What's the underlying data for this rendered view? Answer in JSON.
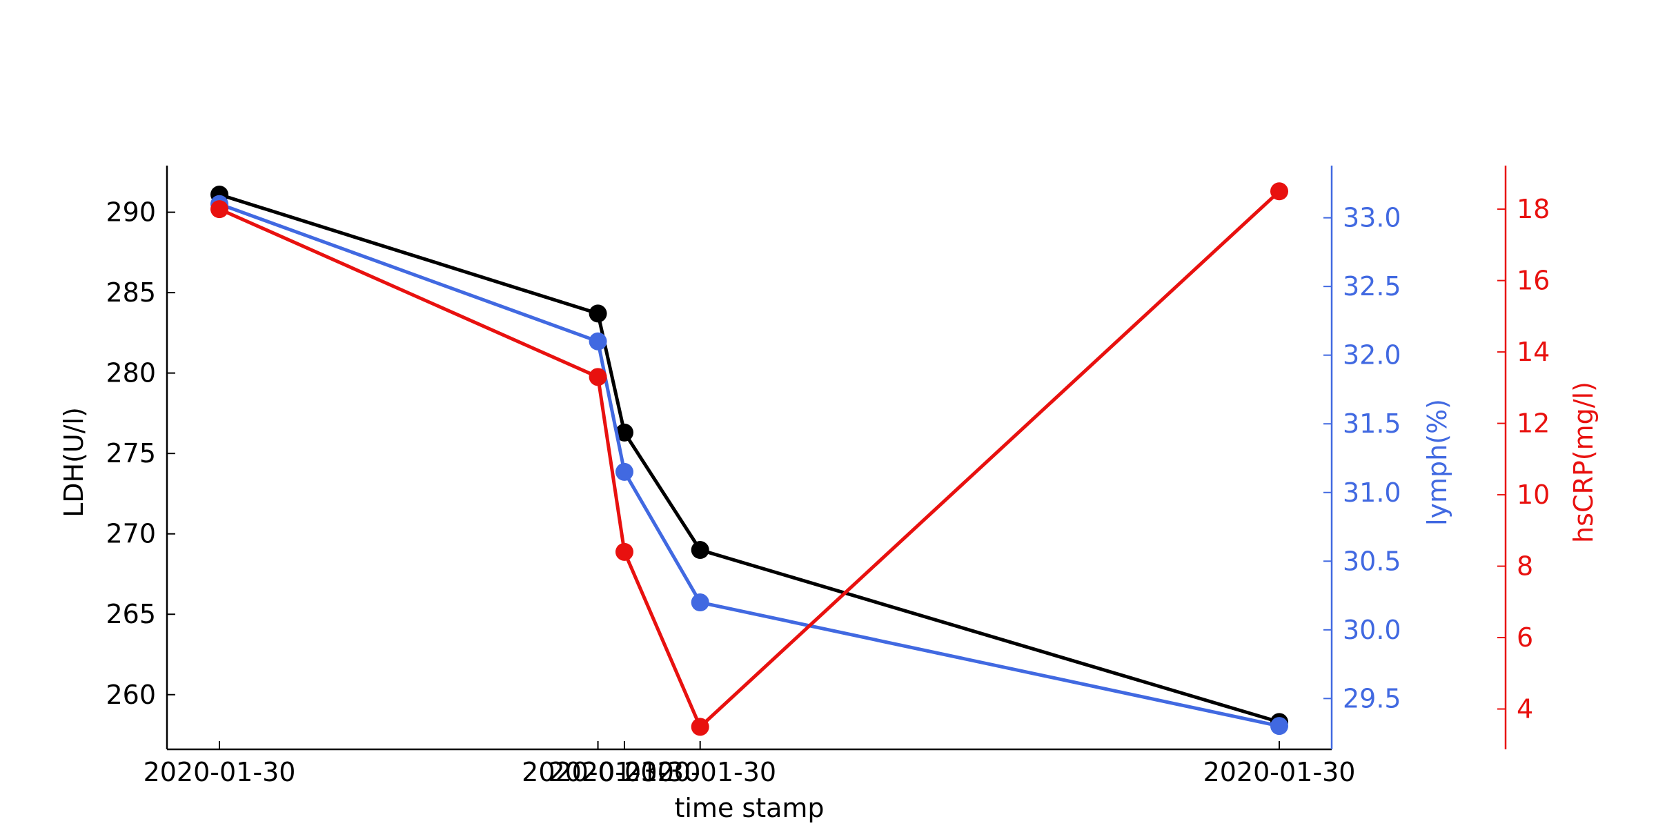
{
  "chart_data": {
    "type": "line",
    "title": "",
    "xlabel": "time stamp",
    "x": [
      0,
      1,
      1.07,
      1.27,
      2.8
    ],
    "x_tick_labels": [
      "2020-01-30",
      "2020-01-30",
      "2020-01-30",
      "2020-01-30",
      "2020-01-30"
    ],
    "series": [
      {
        "name": "",
        "axis": "LDH",
        "color": "#000000",
        "values": [
          291.1,
          283.7,
          276.3,
          269.0,
          258.3
        ]
      },
      {
        "name": "",
        "axis": "lymph",
        "color": "#4169e1",
        "values": [
          33.1,
          32.1,
          31.15,
          30.2,
          29.3
        ]
      },
      {
        "name": "",
        "axis": "hsCRP",
        "color": "#e8110f",
        "values": [
          18.0,
          13.3,
          8.4,
          3.5,
          18.5
        ]
      }
    ],
    "axes": {
      "LDH": {
        "label": "LDH(U/l)",
        "color": "#000000",
        "range": [
          256.6,
          292.9
        ],
        "ticks": [
          260,
          265,
          270,
          275,
          280,
          285,
          290
        ],
        "tick_labels": [
          "260",
          "265",
          "270",
          "275",
          "280",
          "285",
          "290"
        ]
      },
      "lymph": {
        "label": "lymph(%)",
        "color": "#4169e1",
        "range": [
          29.13,
          33.38
        ],
        "ticks": [
          29.5,
          30.0,
          30.5,
          31.0,
          31.5,
          32.0,
          32.5,
          33.0
        ],
        "tick_labels": [
          "29.5",
          "30.0",
          "30.5",
          "31.0",
          "31.5",
          "32.0",
          "32.5",
          "33.0"
        ]
      },
      "hsCRP": {
        "label": "hsCRP(mg/l)",
        "color": "#e8110f",
        "range": [
          2.87,
          19.22
        ],
        "ticks": [
          4,
          6,
          8,
          10,
          12,
          14,
          16,
          18
        ],
        "tick_labels": [
          "4",
          "6",
          "8",
          "10",
          "12",
          "14",
          "16",
          "18"
        ]
      }
    },
    "grid": false,
    "legend": "none"
  }
}
